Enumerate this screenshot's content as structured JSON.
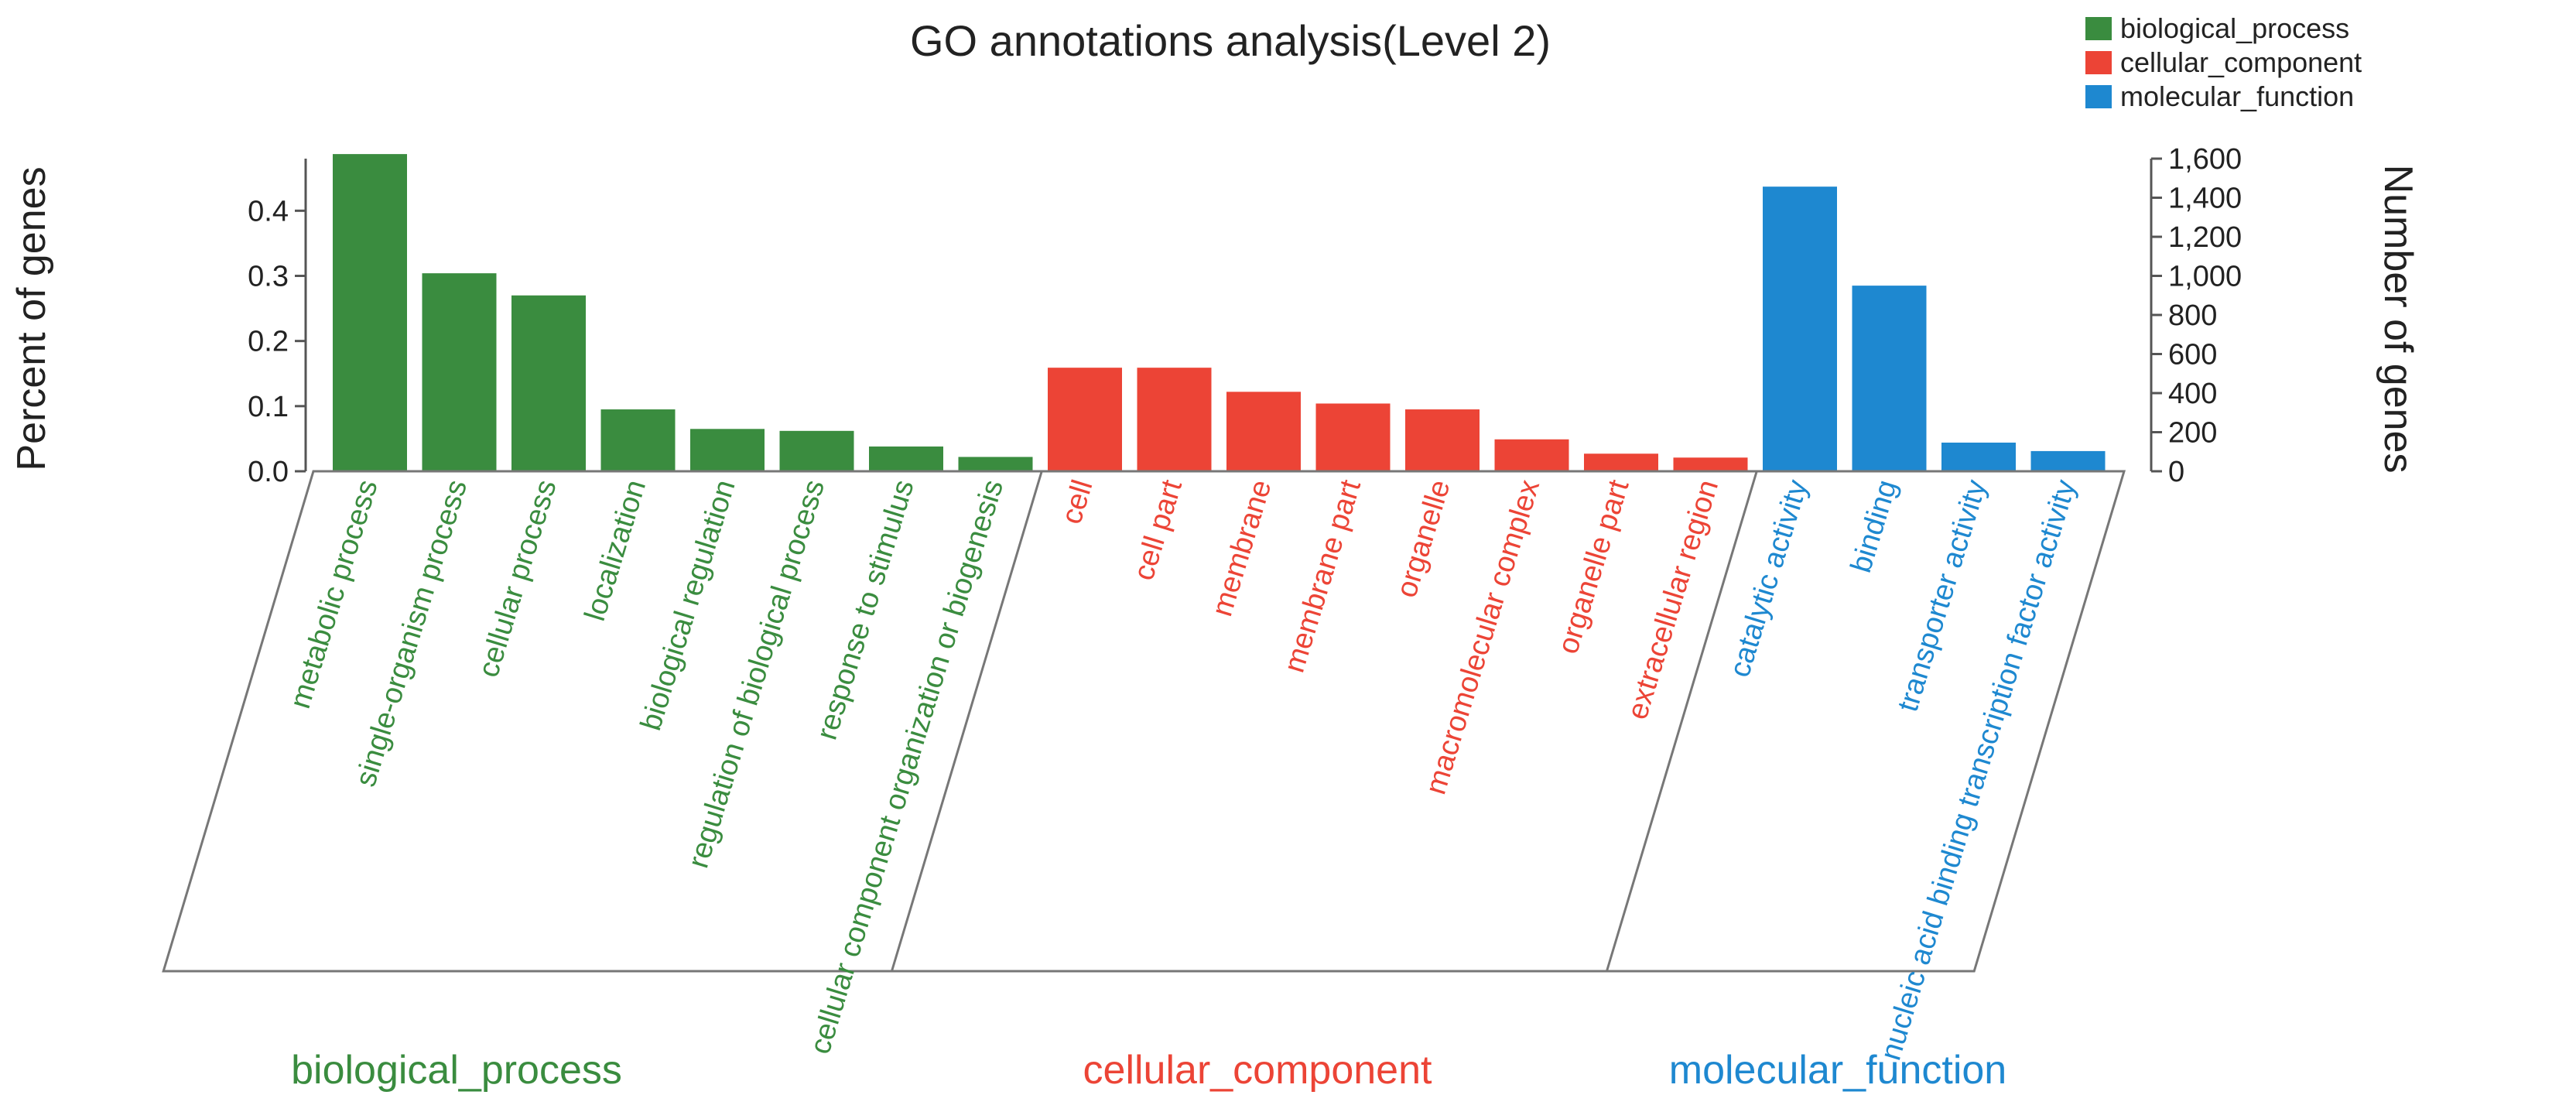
{
  "chart_data": {
    "type": "bar",
    "title": "GO annotations analysis(Level 2)",
    "ylabel_left": "Percent of genes",
    "ylabel_right": "Number of genes",
    "ylim_left": [
      0,
      0.48
    ],
    "ylim_right": [
      0,
      1600
    ],
    "yticks_left": [
      "0.0",
      "0.1",
      "0.2",
      "0.3",
      "0.4"
    ],
    "yticks_right": [
      "0",
      "200",
      "400",
      "600",
      "800",
      "1,000",
      "1,200",
      "1,400",
      "1,600"
    ],
    "colors": {
      "biological_process": "#3a8c3f",
      "cellular_component": "#ec4436",
      "molecular_function": "#1e88d0"
    },
    "legend": [
      "biological_process",
      "cellular_component",
      "molecular_function"
    ],
    "groups": [
      {
        "name": "biological_process",
        "label": "biological_process",
        "categories": [
          {
            "label": "metabolic process",
            "value": 0.487
          },
          {
            "label": "single-organism process",
            "value": 0.304
          },
          {
            "label": "cellular process",
            "value": 0.27
          },
          {
            "label": "localization",
            "value": 0.095
          },
          {
            "label": "biological regulation",
            "value": 0.065
          },
          {
            "label": "regulation of biological process",
            "value": 0.062
          },
          {
            "label": "response to stimulus",
            "value": 0.038
          },
          {
            "label": "cellular component organization or biogenesis",
            "value": 0.022
          }
        ]
      },
      {
        "name": "cellular_component",
        "label": "cellular_component",
        "categories": [
          {
            "label": "cell",
            "value": 0.159
          },
          {
            "label": "cell part",
            "value": 0.159
          },
          {
            "label": "membrane",
            "value": 0.122
          },
          {
            "label": "membrane part",
            "value": 0.104
          },
          {
            "label": "organelle",
            "value": 0.095
          },
          {
            "label": "macromolecular complex",
            "value": 0.049
          },
          {
            "label": "organelle part",
            "value": 0.027
          },
          {
            "label": "extracellular region",
            "value": 0.021
          }
        ]
      },
      {
        "name": "molecular_function",
        "label": "molecular_function",
        "categories": [
          {
            "label": "catalytic activity",
            "value": 0.437
          },
          {
            "label": "binding",
            "value": 0.285
          },
          {
            "label": "transporter activity",
            "value": 0.044
          },
          {
            "label": "nucleic acid binding transcription factor activity",
            "value": 0.031
          }
        ]
      }
    ]
  }
}
